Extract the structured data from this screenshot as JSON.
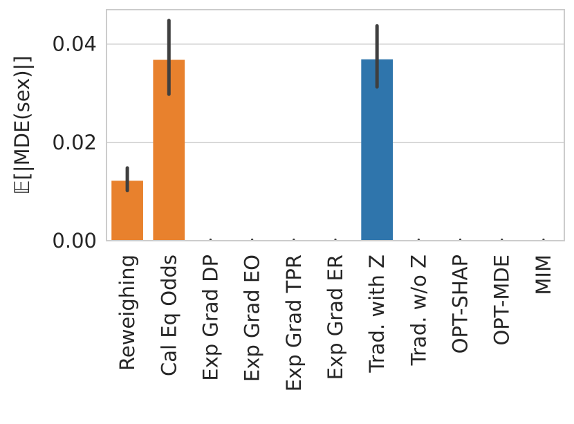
{
  "chart_data": {
    "type": "bar",
    "title": "",
    "xlabel": "",
    "ylabel": "𝔼[|MDE(sex)|]",
    "ylim": [
      0,
      0.047
    ],
    "yticks": [
      0.0,
      0.02,
      0.04
    ],
    "ytick_labels": [
      "0.00",
      "0.02",
      "0.04"
    ],
    "grid": "y",
    "categories": [
      "Reweighing",
      "Cal Eq Odds",
      "Exp Grad DP",
      "Exp Grad EO",
      "Exp Grad TPR",
      "Exp Grad ER",
      "Trad. with Z",
      "Trad. w/o Z",
      "OPT-SHAP",
      "OPT-MDE",
      "MIM"
    ],
    "values": [
      0.0122,
      0.0368,
      0,
      0,
      0,
      0,
      0.0369,
      0,
      0,
      0,
      0
    ],
    "error_low": [
      0.0102,
      0.0298,
      0,
      0,
      0,
      0,
      0.0313,
      0,
      0,
      0,
      0
    ],
    "error_high": [
      0.0148,
      0.0448,
      0,
      0,
      0,
      0,
      0.0437,
      0,
      0,
      0,
      0
    ],
    "bar_colors": [
      "#e8812d",
      "#e8812d",
      "#e8812d",
      "#e8812d",
      "#e8812d",
      "#e8812d",
      "#2f75ac",
      "#2f75ac",
      "#2f75ac",
      "#2f75ac",
      "#2f75ac"
    ]
  }
}
